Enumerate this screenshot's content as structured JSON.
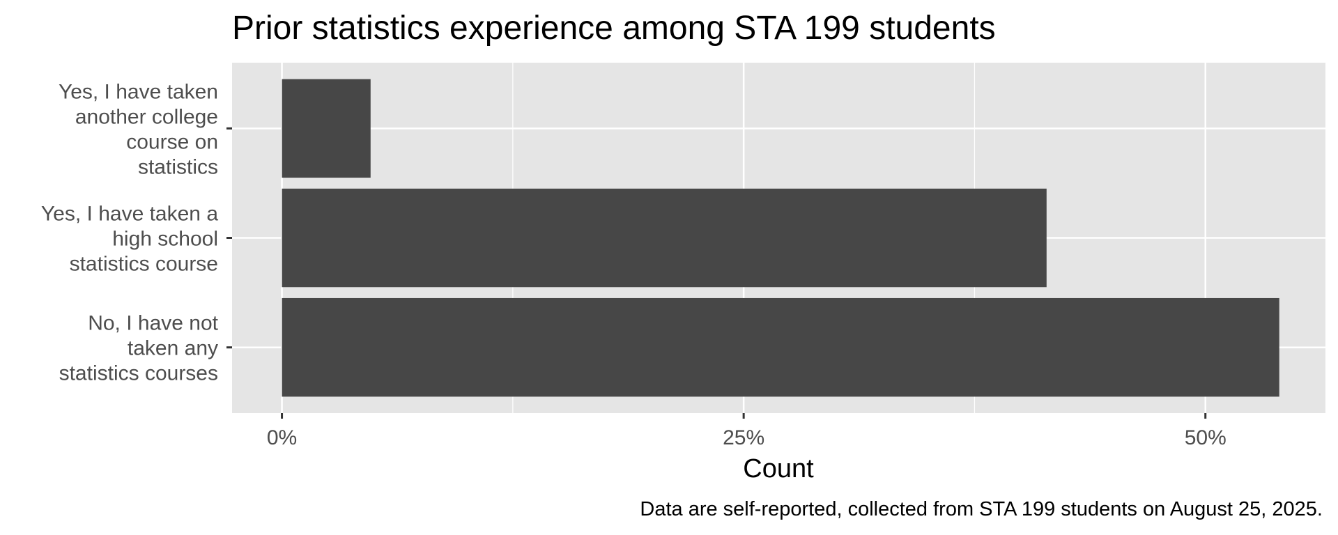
{
  "chart_data": {
    "type": "bar",
    "orientation": "horizontal",
    "title": "Prior statistics experience among STA 199 students",
    "xlabel": "Count",
    "ylabel": "",
    "caption": "Data are self-reported, collected from STA 199 students on August 25, 2025.",
    "categories": [
      [
        "Yes, I have taken",
        "another college",
        "course on",
        "statistics"
      ],
      [
        "Yes, I have taken a",
        "high school",
        "statistics course"
      ],
      [
        "No, I have not",
        "taken any",
        "statistics courses"
      ]
    ],
    "values": [
      4.8,
      41.4,
      54.0
    ],
    "xlim": [
      -2.7,
      56.5
    ],
    "xticks": [
      0,
      25,
      50
    ],
    "xtick_labels": [
      "0%",
      "25%",
      "50%"
    ],
    "grid": true,
    "bar_color": "#474747",
    "panel_color": "#e5e5e5",
    "grid_color": "#ffffff"
  }
}
